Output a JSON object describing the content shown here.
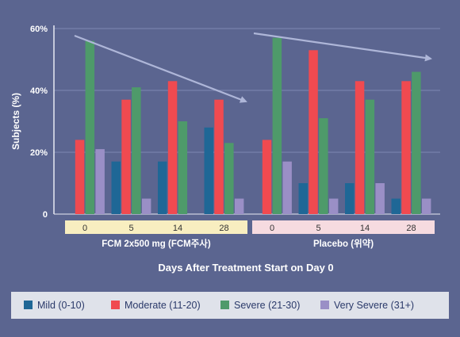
{
  "chart_data": {
    "type": "bar",
    "ylabel": "Subjects (%)",
    "xlabel": "Days After Treatment Start on Day 0",
    "ylim": [
      0,
      60
    ],
    "yticks": [
      "0",
      "20%",
      "40%",
      "60%"
    ],
    "grid": true,
    "groups": [
      {
        "label": "FCM 2x500 mg (FCM주사)",
        "categories": [
          "0",
          "5",
          "14",
          "28"
        ],
        "series": [
          {
            "name": "Mild (0-10)",
            "values": [
              0,
              17,
              17,
              28
            ]
          },
          {
            "name": "Moderate (11-20)",
            "values": [
              24,
              37,
              43,
              37
            ]
          },
          {
            "name": "Severe (21-30)",
            "values": [
              56,
              41,
              30,
              23
            ]
          },
          {
            "name": "Very Severe (31+)",
            "values": [
              21,
              5,
              0,
              5
            ]
          }
        ]
      },
      {
        "label": "Placebo (위약)",
        "categories": [
          "0",
          "5",
          "14",
          "28"
        ],
        "series": [
          {
            "name": "Mild (0-10)",
            "values": [
              0,
              10,
              10,
              5
            ]
          },
          {
            "name": "Moderate (11-20)",
            "values": [
              24,
              53,
              43,
              43
            ]
          },
          {
            "name": "Severe (21-30)",
            "values": [
              57,
              31,
              37,
              46
            ]
          },
          {
            "name": "Very Severe (31+)",
            "values": [
              17,
              5,
              10,
              5
            ]
          }
        ]
      }
    ],
    "legend": {
      "placement": "bottom",
      "items": [
        "Mild (0-10)",
        "Moderate (11-20)",
        "Severe (21-30)",
        "Very Severe (31+)"
      ]
    },
    "colors": {
      "background": "#5b6590",
      "mild": "#1f6796",
      "moderate": "#f04a50",
      "severe": "#4e9a6a",
      "very_severe": "#9a8fc6",
      "fcm_band": "#f8eec0",
      "placebo_band": "#f6dbe0",
      "arrow": "#aeb6d8",
      "grid": "#7e88b2",
      "legend_bg": "#dfe2ea"
    }
  }
}
